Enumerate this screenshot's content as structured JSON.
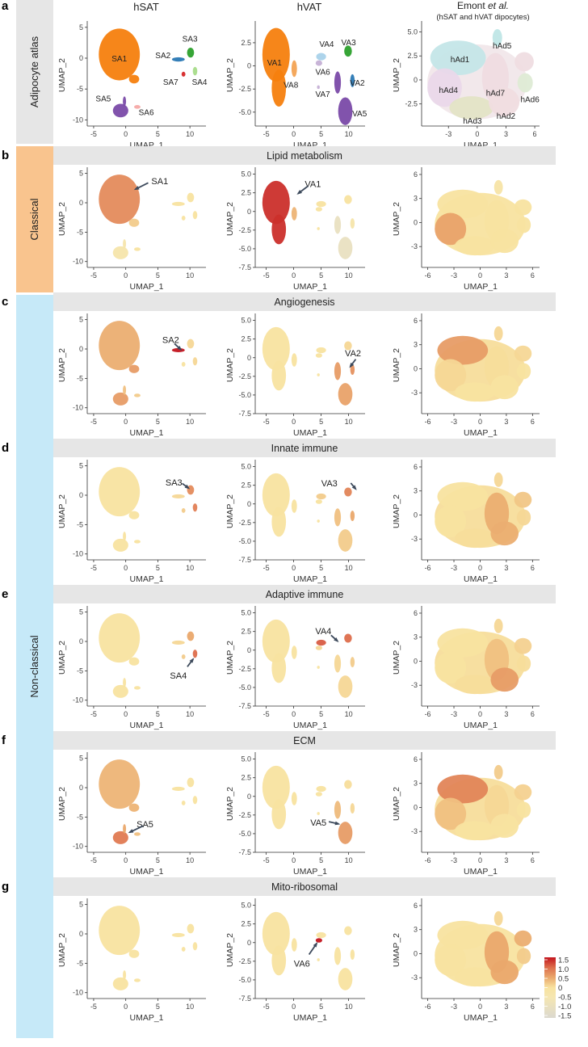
{
  "bands": [
    {
      "label": "Adipocyte atlas",
      "color": "#e6e6e6",
      "rows": [
        "a"
      ]
    },
    {
      "label": "Classical",
      "color": "#f9c48e",
      "rows": [
        "b"
      ]
    },
    {
      "label": "Non-classical",
      "color": "#c6e9f8",
      "rows": [
        "c",
        "d",
        "e",
        "f",
        "g"
      ]
    }
  ],
  "column_titles": {
    "hsat": "hSAT",
    "hvat": "hVAT",
    "emont_main": "Emont ",
    "emont_italic": "et al.",
    "emont_sub": "(hSAT and hVAT dipocytes)"
  },
  "colorbar": {
    "ticks": [
      "1.5",
      "1.0",
      "0.5",
      "0",
      "-0.5",
      "-1.0",
      "-1.5"
    ],
    "range": [
      -1.5,
      1.5
    ],
    "stops": [
      {
        "v": -1.5,
        "c": "#dcd9cf"
      },
      {
        "v": -0.5,
        "c": "#f5e6b2"
      },
      {
        "v": 0,
        "c": "#f8e3a0"
      },
      {
        "v": 0.5,
        "c": "#eaa86c"
      },
      {
        "v": 1.0,
        "c": "#dd6e4c"
      },
      {
        "v": 1.5,
        "c": "#c3141d"
      }
    ]
  },
  "chart_data": {
    "type": "scatter",
    "xlabel": "UMAP_1",
    "ylabel": "UMAP_2",
    "datasets": {
      "hsat": {
        "clusters": [
          {
            "id": "SA1",
            "x": -1,
            "y": 0.6,
            "rx": 3.2,
            "ry": 4.2
          },
          {
            "id": "SA1b",
            "x": 1.3,
            "y": -3.4,
            "rx": 0.8,
            "ry": 0.7
          },
          {
            "id": "SA2",
            "x": 8.2,
            "y": -0.2,
            "rx": 1.0,
            "ry": 0.35
          },
          {
            "id": "SA3",
            "x": 10.1,
            "y": 0.9,
            "rx": 0.55,
            "ry": 0.8
          },
          {
            "id": "SA4",
            "x": 10.8,
            "y": -2.1,
            "rx": 0.35,
            "ry": 0.7
          },
          {
            "id": "SA7",
            "x": 9.0,
            "y": -2.6,
            "rx": 0.3,
            "ry": 0.4
          },
          {
            "id": "SA5",
            "x": -0.8,
            "y": -8.5,
            "rx": 1.2,
            "ry": 1.1
          },
          {
            "id": "SA5t",
            "x": -0.2,
            "y": -7.0,
            "rx": 0.25,
            "ry": 0.8
          },
          {
            "id": "SA6",
            "x": 1.8,
            "y": -7.9,
            "rx": 0.5,
            "ry": 0.3
          }
        ],
        "atlas_colors": {
          "SA1": "#f57f0e",
          "SA1b": "#f57f0e",
          "SA2": "#2a78b4",
          "SA3": "#2ca02c",
          "SA4": "#a8dc8a",
          "SA7": "#d62728",
          "SA5": "#7a4aa8",
          "SA5t": "#7a4aa8",
          "SA6": "#f6a9a6"
        },
        "atlas_labels": [
          {
            "text": "SA1",
            "x": -1.0,
            "y": 0
          },
          {
            "text": "SA2",
            "x": 5.8,
            "y": 0.5
          },
          {
            "text": "SA3",
            "x": 10.0,
            "y": 3.2
          },
          {
            "text": "SA7",
            "x": 7.0,
            "y": -3.8
          },
          {
            "text": "SA4",
            "x": 11.5,
            "y": -3.8
          },
          {
            "text": "SA5",
            "x": -3.5,
            "y": -6.5
          },
          {
            "text": "SA6",
            "x": 3.2,
            "y": -8.7
          }
        ]
      },
      "hvat": {
        "clusters": [
          {
            "id": "VA1",
            "x": -3.2,
            "y": 1.2,
            "rx": 2.5,
            "ry": 2.9
          },
          {
            "id": "VA1t",
            "x": -2.7,
            "y": -2.4,
            "rx": 1.3,
            "ry": 2.0
          },
          {
            "id": "VA8",
            "x": 0.1,
            "y": -0.3,
            "rx": 0.5,
            "ry": 0.9
          },
          {
            "id": "VA4",
            "x": 5.0,
            "y": 1.0,
            "rx": 0.9,
            "ry": 0.4
          },
          {
            "id": "VA3",
            "x": 9.9,
            "y": 1.6,
            "rx": 0.7,
            "ry": 0.6
          },
          {
            "id": "VA6",
            "x": 4.6,
            "y": 0.3,
            "rx": 0.6,
            "ry": 0.3
          },
          {
            "id": "VA2",
            "x": 10.7,
            "y": -1.6,
            "rx": 0.4,
            "ry": 0.7
          },
          {
            "id": "VA7",
            "x": 4.5,
            "y": -2.3,
            "rx": 0.25,
            "ry": 0.2
          },
          {
            "id": "VA5a",
            "x": 8.0,
            "y": -1.8,
            "rx": 0.6,
            "ry": 1.2
          },
          {
            "id": "VA5",
            "x": 9.4,
            "y": -4.9,
            "rx": 1.3,
            "ry": 1.5
          }
        ],
        "atlas_colors": {
          "VA1": "#f57f0e",
          "VA1t": "#f57f0e",
          "VA8": "#f3a354",
          "VA4": "#a9d2ea",
          "VA3": "#2ca02c",
          "VA6": "#c5b0d5",
          "VA2": "#2a78b4",
          "VA7": "#c5b0d5",
          "VA5a": "#7a4aa8",
          "VA5": "#7a4aa8"
        },
        "atlas_labels": [
          {
            "text": "VA1",
            "x": -3.5,
            "y": 0.4
          },
          {
            "text": "VA8",
            "x": -0.5,
            "y": -2.0
          },
          {
            "text": "VA4",
            "x": 6.0,
            "y": 2.4
          },
          {
            "text": "VA3",
            "x": 10.0,
            "y": 2.6
          },
          {
            "text": "VA6",
            "x": 5.3,
            "y": -0.6
          },
          {
            "text": "VA2",
            "x": 11.6,
            "y": -1.8
          },
          {
            "text": "VA7",
            "x": 5.3,
            "y": -3.0
          },
          {
            "text": "VA5",
            "x": 12.0,
            "y": -5.1
          }
        ]
      },
      "emont": {
        "clusters": [
          {
            "id": "bg",
            "x": 0,
            "y": -0.2,
            "rx": 5.2,
            "ry": 3.9
          },
          {
            "id": "hAd1",
            "x": -2.0,
            "y": 2.3,
            "rx": 2.9,
            "ry": 1.8
          },
          {
            "id": "hAd4",
            "x": -3.4,
            "y": -0.8,
            "rx": 1.8,
            "ry": 2.0
          },
          {
            "id": "hAd3",
            "x": -0.6,
            "y": -2.9,
            "rx": 2.3,
            "ry": 1.2
          },
          {
            "id": "hAd7",
            "x": 1.9,
            "y": 0.2,
            "rx": 1.4,
            "ry": 2.6
          },
          {
            "id": "hAd2",
            "x": 2.8,
            "y": -2.3,
            "rx": 1.6,
            "ry": 1.5
          },
          {
            "id": "hAd5",
            "x": 2.1,
            "y": 4.4,
            "rx": 0.5,
            "ry": 0.9
          },
          {
            "id": "hAd6",
            "x": 4.9,
            "y": 1.9,
            "rx": 1.0,
            "ry": 1.0
          },
          {
            "id": "hAd6b",
            "x": 5.0,
            "y": -0.3,
            "rx": 0.8,
            "ry": 1.0
          }
        ],
        "atlas_colors": {
          "bg": "#f1e7ea",
          "hAd1": "#c4e6e8",
          "hAd4": "#ead8ea",
          "hAd3": "#e3e4c6",
          "hAd7": "#efdce2",
          "hAd2": "#f0dde0",
          "hAd5": "#bfe6e6",
          "hAd6": "#efdde2",
          "hAd6b": "#deebd5"
        },
        "atlas_labels": [
          {
            "text": "hAd5",
            "x": 2.6,
            "y": 3.6
          },
          {
            "text": "hAd1",
            "x": -1.8,
            "y": 2.2
          },
          {
            "text": "hAd4",
            "x": -3.0,
            "y": -1.0
          },
          {
            "text": "hAd7",
            "x": 1.9,
            "y": -1.3
          },
          {
            "text": "hAd6",
            "x": 5.5,
            "y": -2.0
          },
          {
            "text": "hAd2",
            "x": 3.0,
            "y": -3.7
          },
          {
            "text": "hAd3",
            "x": -0.5,
            "y": -4.2
          }
        ]
      }
    },
    "axes": {
      "hsat": {
        "xlim": [
          -6,
          12.5
        ],
        "ylim": [
          -11,
          5.5
        ],
        "xticks": [
          "-5",
          "0",
          "5",
          "10"
        ],
        "yticks": [
          "5",
          "0",
          "-5",
          "-10"
        ]
      },
      "hvat_a": {
        "xlim": [
          -7,
          13
        ],
        "ylim": [
          -6.5,
          4.5
        ],
        "xticks": [
          "-5",
          "0",
          "5",
          "10"
        ],
        "yticks": [
          "2.5",
          "0",
          "-2.5",
          "-5.0"
        ]
      },
      "hvat": {
        "xlim": [
          -7,
          13
        ],
        "ylim": [
          -7.5,
          5.5
        ],
        "xticks": [
          "-5",
          "0",
          "5",
          "10"
        ],
        "yticks": [
          "5.0",
          "2.5",
          "0",
          "-2.5",
          "-5.0",
          "-7.5"
        ]
      },
      "emont_a": {
        "xlim": [
          -5.8,
          6.5
        ],
        "ylim": [
          -4.8,
          5.8
        ],
        "xticks": [
          "-3",
          "0",
          "3",
          "6"
        ],
        "yticks": [
          "5.0",
          "2.5",
          "0",
          "-2.5"
        ]
      },
      "emont": {
        "xlim": [
          -6.7,
          6.8
        ],
        "ylim": [
          -5.6,
          6.5
        ],
        "xticks": [
          "-6",
          "-3",
          "0",
          "3",
          "6"
        ],
        "yticks": [
          "6",
          "3",
          "0",
          "-3"
        ]
      }
    },
    "rows": [
      {
        "letter": "a",
        "header": null,
        "mode": "atlas"
      },
      {
        "letter": "b",
        "header": "Lipid metabolism",
        "scores": {
          "hsat": {
            "SA1": 0.75,
            "SA1b": 0.2,
            "SA5": -0.3,
            "SA5t": -0.3,
            "SA6": 0,
            "SA2": 0,
            "SA3": 0,
            "SA4": 0,
            "SA7": 0
          },
          "hvat": {
            "VA1": 1.35,
            "VA1t": 1.35,
            "VA8": 0.4,
            "VA4": 0,
            "VA3": 0,
            "VA6": 0,
            "VA2": -0.3,
            "VA7": 0,
            "VA5a": -1.0,
            "VA5": -1.0
          },
          "emont": {
            "bg": 0,
            "hAd1": 0,
            "hAd4": 0.55,
            "hAd3": 0,
            "hAd7": 0,
            "hAd2": 0,
            "hAd5": -0.2,
            "hAd6": 0,
            "hAd6b": 0
          }
        },
        "annotations": [
          {
            "panel": "hsat",
            "text": "SA1",
            "tx": 5.3,
            "ty": 3.7,
            "fx": 3.5,
            "fy": 3.4,
            "hx": 1.5,
            "hy": 2.3
          },
          {
            "panel": "hvat",
            "text": "VA1",
            "tx": 3.5,
            "ty": 3.7,
            "fx": 2.6,
            "fy": 3.4,
            "hx": 0.8,
            "hy": 2.4
          }
        ]
      },
      {
        "letter": "c",
        "header": "Angiogenesis",
        "scores": {
          "hsat": {
            "SA1": 0.45,
            "SA1b": 0.6,
            "SA2": 1.5,
            "SA3": 0.1,
            "SA4": 0.1,
            "SA7": 0,
            "SA5": 0.6,
            "SA5t": 0.3,
            "SA6": 0.2
          },
          "hvat": {
            "VA1": 0,
            "VA1t": 0,
            "VA8": 0,
            "VA4": 0,
            "VA3": 0.1,
            "VA6": 0,
            "VA2": 0.7,
            "VA7": 0,
            "VA5a": 0.6,
            "VA5": 0.55
          },
          "emont": {
            "bg": 0.05,
            "hAd1": 0.6,
            "hAd4": 0.1,
            "hAd3": 0,
            "hAd7": 0.05,
            "hAd2": 0,
            "hAd5": 0.1,
            "hAd6": 0.1,
            "hAd6b": 0
          }
        },
        "annotations": [
          {
            "panel": "hsat",
            "text": "SA2",
            "tx": 7.0,
            "ty": 1.6,
            "fx": 7.6,
            "fy": 0.9,
            "hx": 8.6,
            "hy": -0.1
          },
          {
            "panel": "hvat",
            "text": "VA2",
            "tx": 10.8,
            "ty": 0.6,
            "fx": 11.3,
            "fy": -0.2,
            "hx": 10.3,
            "hy": -1.2
          }
        ]
      },
      {
        "letter": "d",
        "header": "Innate immune",
        "scores": {
          "hsat": {
            "SA1": 0,
            "SA1b": 0,
            "SA2": 0.1,
            "SA3": 0.75,
            "SA4": 0.85,
            "SA7": 0.2,
            "SA5": 0,
            "SA5t": 0,
            "SA6": 0
          },
          "hvat": {
            "VA1": 0,
            "VA1t": 0,
            "VA8": 0,
            "VA4": 0.2,
            "VA3": 0.8,
            "VA6": 0,
            "VA2": 0.5,
            "VA7": 0,
            "VA5a": 0.3,
            "VA5": 0.2
          },
          "emont": {
            "bg": 0.05,
            "hAd1": 0,
            "hAd4": 0,
            "hAd3": 0.05,
            "hAd7": 0.45,
            "hAd2": 0.45,
            "hAd5": 0.1,
            "hAd6": 0.25,
            "hAd6b": 0.1
          }
        },
        "annotations": [
          {
            "panel": "hsat",
            "text": "SA3",
            "tx": 7.5,
            "ty": 2.2,
            "fx": 8.8,
            "fy": 2.0,
            "hx": 9.8,
            "hy": 1.2
          },
          {
            "panel": "hvat",
            "text": "VA3",
            "tx": 6.5,
            "ty": 2.8,
            "fx": 10.4,
            "fy": 2.8,
            "hx": 11.3,
            "hy": 2.0
          }
        ]
      },
      {
        "letter": "e",
        "header": "Adaptive immune",
        "scores": {
          "hsat": {
            "SA1": 0,
            "SA1b": 0,
            "SA2": 0.1,
            "SA3": 0.5,
            "SA4": 1.0,
            "SA7": 0.2,
            "SA5": 0,
            "SA5t": 0,
            "SA6": 0
          },
          "hvat": {
            "VA1": 0,
            "VA1t": 0,
            "VA8": 0,
            "VA4": 1.1,
            "VA3": 1.0,
            "VA6": 0.1,
            "VA2": 0.2,
            "VA7": 0,
            "VA5a": 0.1,
            "VA5": 0.1
          },
          "emont": {
            "bg": 0.05,
            "hAd1": 0,
            "hAd4": 0,
            "hAd3": 0.05,
            "hAd7": 0.3,
            "hAd2": 0.6,
            "hAd5": 0.1,
            "hAd6": 0.15,
            "hAd6b": 0.05
          }
        },
        "annotations": [
          {
            "panel": "hsat",
            "text": "SA4",
            "tx": 8.2,
            "ty": -5.8,
            "fx": 9.6,
            "fy": -4.3,
            "hx": 10.5,
            "hy": -3.0
          },
          {
            "panel": "hvat",
            "text": "VA4",
            "tx": 5.4,
            "ty": 2.6,
            "fx": 6.8,
            "fy": 2.0,
            "hx": 8.0,
            "hy": 1.2
          }
        ]
      },
      {
        "letter": "f",
        "header": "ECM",
        "scores": {
          "hsat": {
            "SA1": 0.4,
            "SA1b": 0.4,
            "SA2": 0,
            "SA3": 0,
            "SA4": 0,
            "SA7": 0,
            "SA5": 0.9,
            "SA5t": 0.5,
            "SA6": 0.3
          },
          "hvat": {
            "VA1": 0,
            "VA1t": 0,
            "VA8": 0,
            "VA4": 0,
            "VA3": 0.05,
            "VA6": 0,
            "VA2": 0.1,
            "VA7": 0,
            "VA5a": 0.35,
            "VA5": 0.6
          },
          "emont": {
            "bg": 0.05,
            "hAd1": 0.8,
            "hAd4": 0.3,
            "hAd3": 0,
            "hAd7": 0.1,
            "hAd2": 0,
            "hAd5": 0.2,
            "hAd6": 0.15,
            "hAd6b": 0
          }
        },
        "annotations": [
          {
            "panel": "hsat",
            "text": "SA5",
            "tx": 3.0,
            "ty": -6.2,
            "fx": 2.7,
            "fy": -6.5,
            "hx": 0.6,
            "hy": -7.6
          },
          {
            "panel": "hvat",
            "text": "VA5",
            "tx": 4.5,
            "ty": -3.5,
            "fx": 6.4,
            "fy": -3.4,
            "hx": 8.2,
            "hy": -3.7
          }
        ]
      },
      {
        "letter": "g",
        "header": "Mito-ribosomal",
        "scores": {
          "hsat": {
            "SA1": 0,
            "SA1b": 0,
            "SA2": 0,
            "SA3": 0,
            "SA4": 0,
            "SA7": 0,
            "SA5": 0,
            "SA5t": 0,
            "SA6": 0
          },
          "hvat": {
            "VA1": 0,
            "VA1t": 0,
            "VA8": 0,
            "VA4": 0,
            "VA3": 0,
            "VA6": 1.5,
            "VA2": 0,
            "VA7": 0,
            "VA5a": 0,
            "VA5": 0
          },
          "emont": {
            "bg": 0,
            "hAd1": 0,
            "hAd4": 0,
            "hAd3": 0,
            "hAd7": 0.5,
            "hAd2": 0.5,
            "hAd5": 0.1,
            "hAd6": 0.45,
            "hAd6b": 0.2
          }
        },
        "annotations": [
          {
            "panel": "hvat",
            "text": "VA6",
            "tx": 1.5,
            "ty": -2.8,
            "fx": 2.8,
            "fy": -1.6,
            "hx": 4.2,
            "hy": -0.1
          }
        ]
      }
    ]
  }
}
